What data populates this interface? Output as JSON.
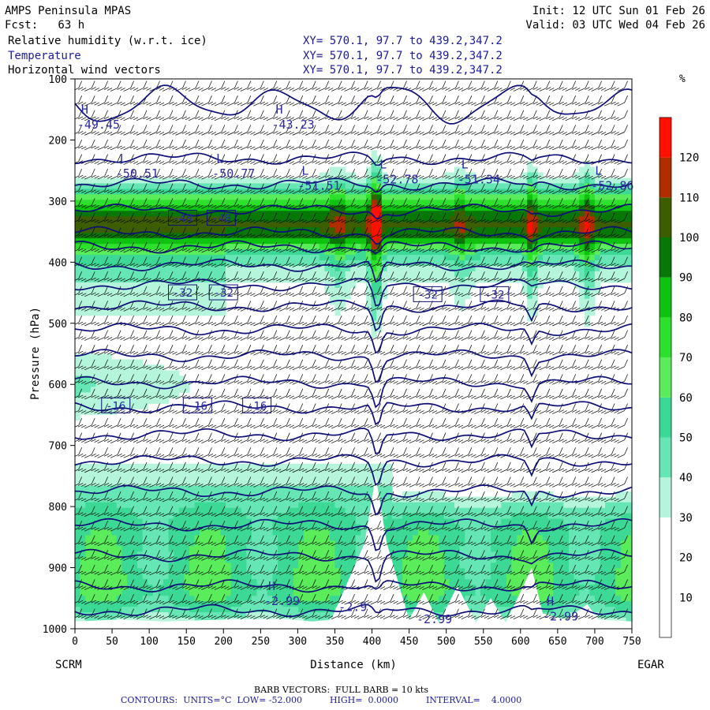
{
  "header": {
    "model": "AMPS Peninsula MPAS",
    "fcst": "Fcst:   63 h",
    "init": "Init: 12 UTC Sun 01 Feb 26",
    "valid": "Valid: 03 UTC Wed 04 Feb 26"
  },
  "fields": [
    {
      "name": "Relative humidity (w.r.t. ice)",
      "xy": "XY= 570.1, 97.7 to 439.2,347.2",
      "color": "#000000"
    },
    {
      "name": "Temperature",
      "xy": "XY= 570.1, 97.7 to 439.2,347.2",
      "color": "#1b1b9a"
    },
    {
      "name": "Horizontal wind vectors",
      "xy": "XY= 570.1, 97.7 to 439.2,347.2",
      "color": "#000000"
    }
  ],
  "footer": {
    "barb": "BARB VECTORS:  FULL BARB = 10 kts",
    "contours": "CONTOURS:  UNITS=°C  LOW= -52.000          HIGH=  0.0000          INTERVAL=    4.0000"
  },
  "chart_data": {
    "type": "heatmap",
    "xlabel": "Distance (km)",
    "ylabel": "Pressure (hPa)",
    "xlim": [
      0,
      750
    ],
    "ylim": [
      1000,
      100
    ],
    "x_ticks": [
      0,
      50,
      100,
      150,
      200,
      250,
      300,
      350,
      400,
      450,
      500,
      550,
      600,
      650,
      700,
      750
    ],
    "y_ticks": [
      100,
      200,
      300,
      400,
      500,
      600,
      700,
      800,
      900,
      1000
    ],
    "endpoints": {
      "left": "SCRM",
      "right": "EGAR"
    },
    "colorbar": {
      "unit": "%",
      "levels": [
        0,
        10,
        20,
        30,
        40,
        50,
        60,
        70,
        80,
        90,
        100,
        110,
        120
      ],
      "colors": [
        "#ffffff",
        "#ffffff",
        "#ffffff",
        "#b4f5dc",
        "#66e6b4",
        "#3cd996",
        "#5aec5a",
        "#2ce02c",
        "#0fc20f",
        "#077807",
        "#3d5e00",
        "#b02d00",
        "#ff1000"
      ]
    },
    "extrema_labels": [
      {
        "type": "H",
        "value": "-49.45",
        "x": 3,
        "p": 185
      },
      {
        "type": "H",
        "value": "-43.23",
        "x": 265,
        "p": 185
      },
      {
        "type": "L",
        "value": "-50.51",
        "x": 55,
        "p": 265
      },
      {
        "type": "L",
        "value": "-50.77",
        "x": 185,
        "p": 265
      },
      {
        "type": "L",
        "value": "-51.51",
        "x": 300,
        "p": 285
      },
      {
        "type": "L",
        "value": "-52.78",
        "x": 405,
        "p": 275
      },
      {
        "type": "L",
        "value": "-51.34",
        "x": 515,
        "p": 275
      },
      {
        "type": "L",
        "value": "-52.86",
        "x": 695,
        "p": 285
      },
      {
        "type": "H",
        "value": "-2.99",
        "x": 255,
        "p": 965
      },
      {
        "type": "",
        "value": "-2.9",
        "x": 355,
        "p": 975
      },
      {
        "type": "",
        "value": "-2.99",
        "x": 460,
        "p": 995
      },
      {
        "type": "H",
        "value": "-2.99",
        "x": 630,
        "p": 990
      }
    ],
    "contour_labels": [
      {
        "value": "-48",
        "x": 145,
        "p": 328
      },
      {
        "value": "-48",
        "x": 197,
        "p": 328
      },
      {
        "value": "-32",
        "x": 145,
        "p": 450
      },
      {
        "value": "-32",
        "x": 200,
        "p": 450
      },
      {
        "value": "-32",
        "x": 475,
        "p": 453
      },
      {
        "value": "-32",
        "x": 565,
        "p": 453
      },
      {
        "value": "-16",
        "x": 55,
        "p": 635
      },
      {
        "value": "-16",
        "x": 165,
        "p": 635
      },
      {
        "value": "-16",
        "x": 245,
        "p": 635
      }
    ]
  }
}
